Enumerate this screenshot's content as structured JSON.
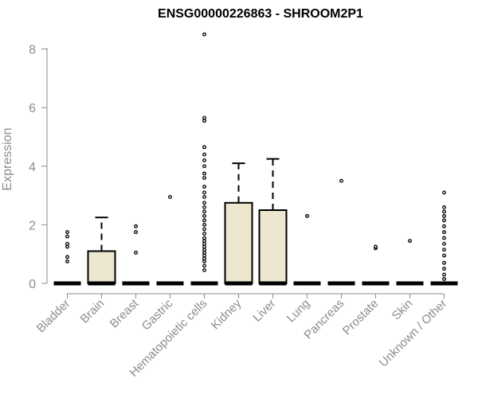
{
  "chart_data": {
    "type": "box",
    "title": "ENSG00000226863 - SHROOM2P1",
    "xlabel": "",
    "ylabel": "Expression",
    "ylim": [
      0,
      8.6
    ],
    "yticks": [
      0,
      2,
      4,
      6,
      8
    ],
    "grid": false,
    "box_fill": "#ede7cf",
    "categories": [
      "Bladder",
      "Brain",
      "Breast",
      "Gastric",
      "Hematopoietic cells",
      "Kidney",
      "Liver",
      "Lung",
      "Pancreas",
      "Prostate",
      "Skin",
      "Unknown / Other"
    ],
    "series": [
      {
        "q1": 0,
        "median": 0,
        "q3": 0,
        "whisker_low": 0,
        "whisker_high": 0,
        "outliers": [
          0.75,
          0.9,
          1.25,
          1.35,
          1.6,
          1.75
        ]
      },
      {
        "q1": 0,
        "median": 0,
        "q3": 1.1,
        "whisker_low": 0,
        "whisker_high": 2.25,
        "outliers": []
      },
      {
        "q1": 0,
        "median": 0,
        "q3": 0,
        "whisker_low": 0,
        "whisker_high": 0,
        "outliers": [
          1.05,
          1.75,
          1.95
        ]
      },
      {
        "q1": 0,
        "median": 0,
        "q3": 0,
        "whisker_low": 0,
        "whisker_high": 0,
        "outliers": [
          2.95
        ]
      },
      {
        "q1": 0,
        "median": 0,
        "q3": 0,
        "whisker_low": 0,
        "whisker_high": 0,
        "outliers": [
          0.45,
          0.6,
          0.75,
          0.85,
          0.95,
          1.05,
          1.15,
          1.25,
          1.35,
          1.45,
          1.55,
          1.7,
          1.85,
          2.0,
          2.15,
          2.3,
          2.45,
          2.6,
          2.75,
          2.95,
          3.1,
          3.3,
          3.6,
          3.75,
          4.0,
          4.2,
          4.4,
          4.65,
          5.55,
          5.65,
          8.5
        ]
      },
      {
        "q1": 0,
        "median": 0,
        "q3": 2.75,
        "whisker_low": 0,
        "whisker_high": 4.1,
        "outliers": []
      },
      {
        "q1": 0,
        "median": 0,
        "q3": 2.5,
        "whisker_low": 0,
        "whisker_high": 4.25,
        "outliers": []
      },
      {
        "q1": 0,
        "median": 0,
        "q3": 0,
        "whisker_low": 0,
        "whisker_high": 0,
        "outliers": [
          2.3
        ]
      },
      {
        "q1": 0,
        "median": 0,
        "q3": 0,
        "whisker_low": 0,
        "whisker_high": 0,
        "outliers": [
          3.5
        ]
      },
      {
        "q1": 0,
        "median": 0,
        "q3": 0,
        "whisker_low": 0,
        "whisker_high": 0,
        "outliers": [
          1.2,
          1.25
        ]
      },
      {
        "q1": 0,
        "median": 0,
        "q3": 0,
        "whisker_low": 0,
        "whisker_high": 0,
        "outliers": [
          1.45
        ]
      },
      {
        "q1": 0,
        "median": 0,
        "q3": 0,
        "whisker_low": 0,
        "whisker_high": 0,
        "outliers": [
          0.15,
          0.3,
          0.5,
          0.7,
          0.95,
          1.15,
          1.35,
          1.55,
          1.75,
          1.95,
          2.15,
          2.3,
          2.45,
          2.6,
          3.1
        ]
      }
    ]
  }
}
